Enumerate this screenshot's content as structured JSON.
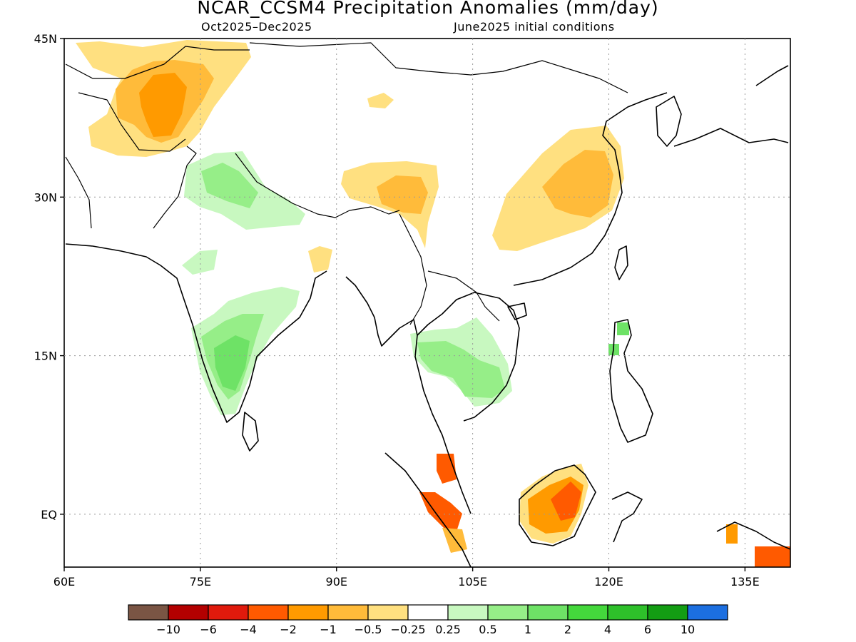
{
  "title": "NCAR_CCSM4 Precipitation Anomalies (mm/day)",
  "subtitle_left": "Oct2025–Dec2025",
  "subtitle_right": "June2025 initial conditions",
  "map": {
    "region": "South and East Asia",
    "lon_range": [
      60,
      140
    ],
    "lat_range": [
      -5,
      45
    ],
    "lon_ticks": [
      "60E",
      "75E",
      "90E",
      "105E",
      "120E",
      "135E"
    ],
    "lat_ticks": [
      "45N",
      "30N",
      "15N",
      "EQ"
    ],
    "gridlines": "dotted"
  },
  "colorbar": {
    "colors": [
      "#7a5544",
      "#b30000",
      "#e01a0c",
      "#ff5a00",
      "#ff9a00",
      "#ffbb3a",
      "#ffe080",
      "#ffffff",
      "#c8f8c0",
      "#96ee88",
      "#6ee266",
      "#44d83c",
      "#2ec02a",
      "#139d13",
      "#1c6fe0"
    ],
    "labels": [
      "−10",
      "−6",
      "−4",
      "−2",
      "−1",
      "−0.5",
      "−0.25",
      "0.25",
      "0.5",
      "1",
      "2",
      "4",
      "6",
      "10"
    ]
  },
  "anomalies": [
    {
      "area": "Afghanistan / northern Pakistan",
      "sign": "dry",
      "max_mm_day": -1
    },
    {
      "area": "Central Tibetan Plateau",
      "sign": "dry",
      "max_mm_day": -0.5
    },
    {
      "area": "Eastern China / Yangtze basin",
      "sign": "dry",
      "max_mm_day": -0.5
    },
    {
      "area": "Northern India / Himalayan foothills",
      "sign": "wet",
      "max_mm_day": 0.5
    },
    {
      "area": "Southern Indian peninsula",
      "sign": "wet",
      "max_mm_day": 1
    },
    {
      "area": "Thailand / Cambodia / Vietnam",
      "sign": "wet",
      "max_mm_day": 1
    },
    {
      "area": "Philippines",
      "sign": "wet",
      "max_mm_day": 1
    },
    {
      "area": "Borneo (Kalimantan)",
      "sign": "dry",
      "max_mm_day": -2
    },
    {
      "area": "Sumatra / Malay Peninsula",
      "sign": "dry",
      "max_mm_day": -2
    },
    {
      "area": "New Guinea / Arafura",
      "sign": "dry",
      "max_mm_day": -2
    }
  ]
}
